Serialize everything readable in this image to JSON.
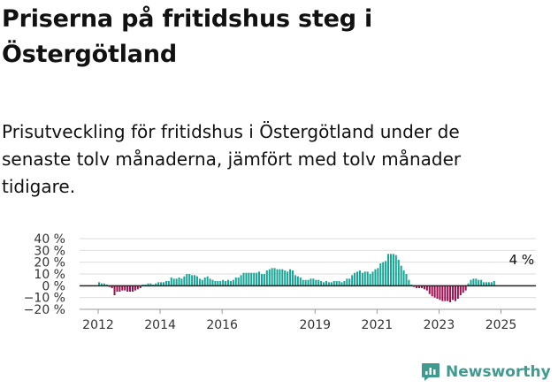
{
  "title": "Priserna på fritidshus steg i Östergötland",
  "subtitle": "Prisutveckling för fritidshus i Östergötland under de senaste tolv månaderna, jämfört med tolv månader tidigare.",
  "brand": {
    "name": "Newsworthy",
    "icon": "bar-chart-logo-icon",
    "color": "#3f9a8f"
  },
  "colors": {
    "positive": "#16a596",
    "negative": "#9e1050",
    "grid": "#dddddd",
    "zero_line": "#222222"
  },
  "chart_data": {
    "type": "bar",
    "title": "",
    "xlabel": "",
    "ylabel": "",
    "ylim": [
      -20,
      40
    ],
    "grid": true,
    "legend": "none",
    "y_ticks": [
      "40 %",
      "30 %",
      "20 %",
      "10 %",
      "0 %",
      "−10 %",
      "−20 %"
    ],
    "y_tick_values": [
      40,
      30,
      20,
      10,
      0,
      -10,
      -20
    ],
    "x_ticks": [
      "2012",
      "2014",
      "2016",
      "2019",
      "2021",
      "2023",
      "2025"
    ],
    "x_tick_values": [
      "2012-01",
      "2014-01",
      "2016-01",
      "2019-01",
      "2021-01",
      "2023-01",
      "2025-01"
    ],
    "annotation": {
      "text": "4 %",
      "at": "2025-09"
    },
    "series": [
      {
        "start": "2012-01",
        "frequency": "monthly",
        "values": [
          3,
          2,
          2,
          1,
          -1,
          -2,
          -8,
          -5,
          -5,
          -4,
          -4,
          -5,
          -5,
          -5,
          -4,
          -3,
          -2,
          1,
          1,
          2,
          2,
          1,
          2,
          3,
          3,
          3,
          4,
          4,
          7,
          6,
          6,
          7,
          6,
          8,
          10,
          10,
          9,
          9,
          8,
          6,
          5,
          7,
          8,
          6,
          5,
          4,
          4,
          4,
          5,
          4,
          5,
          4,
          5,
          7,
          7,
          9,
          11,
          11,
          11,
          11,
          11,
          11,
          12,
          10,
          10,
          13,
          14,
          15,
          15,
          14,
          14,
          14,
          13,
          12,
          14,
          13,
          9,
          8,
          7,
          5,
          5,
          5,
          6,
          6,
          5,
          5,
          4,
          3,
          4,
          3,
          3,
          4,
          4,
          4,
          3,
          4,
          6,
          6,
          9,
          11,
          12,
          13,
          11,
          12,
          12,
          10,
          12,
          14,
          15,
          19,
          20,
          21,
          27,
          27,
          27,
          26,
          22,
          17,
          13,
          10,
          5,
          1,
          -1,
          -2,
          -2,
          -2,
          -3,
          -4,
          -7,
          -9,
          -10,
          -11,
          -12,
          -13,
          -13,
          -13,
          -14,
          -12,
          -13,
          -11,
          -8,
          -6,
          -4,
          2,
          5,
          6,
          6,
          5,
          5,
          3,
          3,
          3,
          3,
          4
        ]
      }
    ]
  }
}
